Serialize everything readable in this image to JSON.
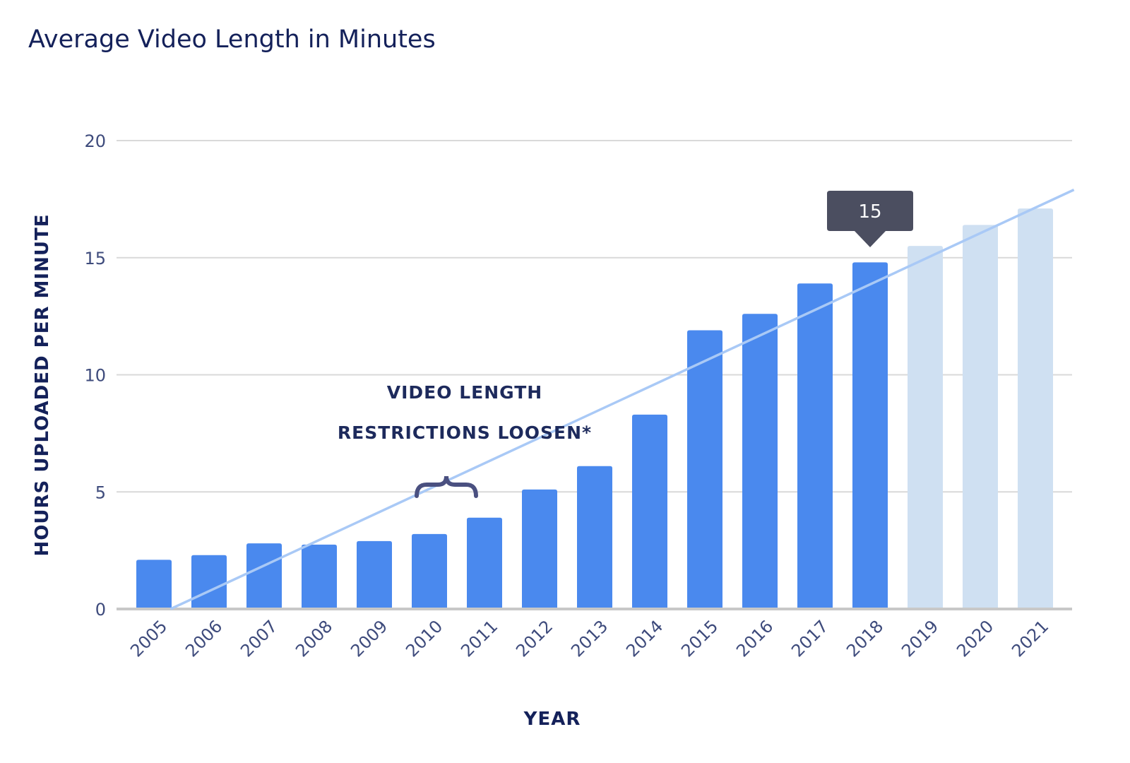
{
  "chart_data": {
    "type": "bar",
    "title": "Average Video Length in Minutes",
    "xlabel": "YEAR",
    "ylabel": "HOURS UPLOADED PER MINUTE",
    "ylim": [
      0,
      20
    ],
    "yticks": [
      0,
      5,
      10,
      15,
      20
    ],
    "grid": true,
    "categories": [
      "2005",
      "2006",
      "2007",
      "2008",
      "2009",
      "2010",
      "2011",
      "2012",
      "2013",
      "2014",
      "2015",
      "2016",
      "2017",
      "2018",
      "2019",
      "2020",
      "2021"
    ],
    "values": [
      2.1,
      2.3,
      2.8,
      2.75,
      2.9,
      3.2,
      3.9,
      5.1,
      6.1,
      8.3,
      11.9,
      12.6,
      13.9,
      14.8,
      15.5,
      16.4,
      17.1
    ],
    "projected_from": "2019",
    "colors": {
      "actual": "#4a89ee",
      "projected": "#cfe0f2",
      "trend": "#a9c9f6",
      "tooltip": "#4b4e60"
    },
    "trendline": {
      "start": {
        "x": 2005.3,
        "y": 0
      },
      "end": {
        "x": 2021.7,
        "y": 17.9
      }
    },
    "annotation": {
      "lines": [
        "VIDEO LENGTH",
        "RESTRICTIONS LOOSEN*"
      ],
      "span": [
        "2010",
        "2011"
      ]
    },
    "tooltip": {
      "category": "2018",
      "label": "15"
    }
  }
}
